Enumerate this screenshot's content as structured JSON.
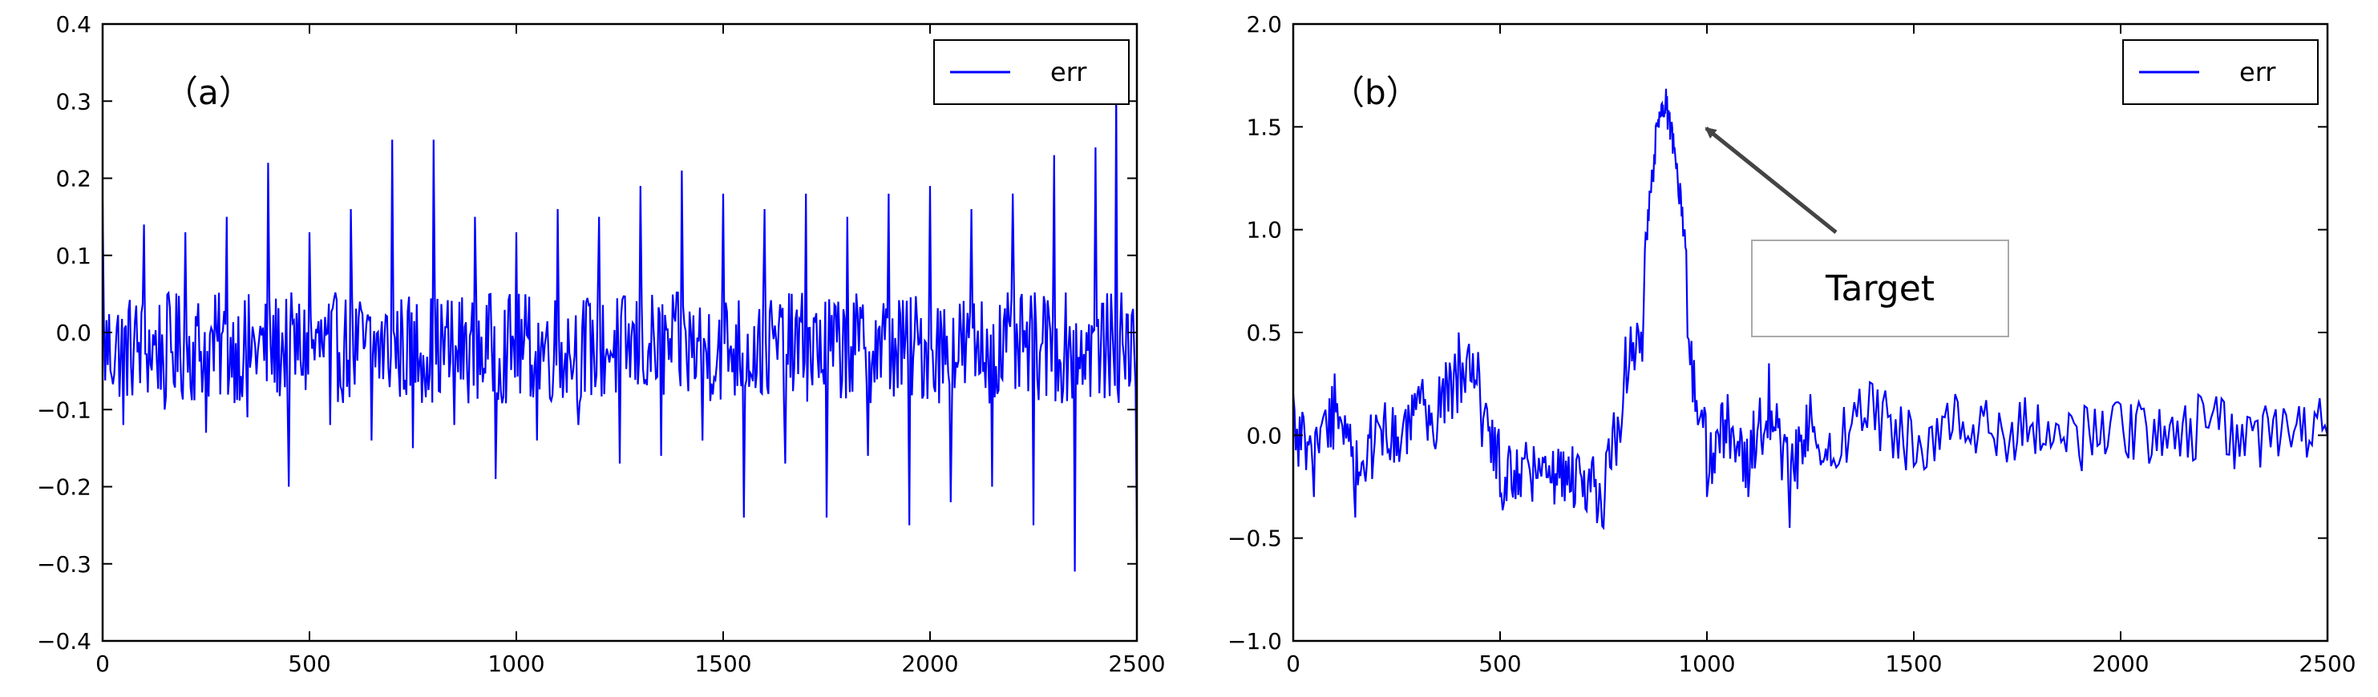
{
  "chart_data": [
    {
      "panel_label": "（a）",
      "type": "line",
      "xlim": [
        0,
        2500
      ],
      "ylim": [
        -0.4,
        0.4
      ],
      "xticks": [
        0,
        500,
        1000,
        1500,
        2000,
        2500
      ],
      "xtick_labels": [
        "0",
        "500",
        "1000",
        "1500",
        "2000",
        "2500"
      ],
      "yticks": [
        -0.4,
        -0.3,
        -0.2,
        -0.1,
        0.0,
        0.1,
        0.2,
        0.3,
        0.4
      ],
      "ytick_labels": [
        "−0.4",
        "−0.3",
        "−0.2",
        "−0.1",
        "0.0",
        "0.1",
        "0.2",
        "0.3",
        "0.4"
      ],
      "legend": {
        "placement": "top-right",
        "entries": [
          "err"
        ]
      },
      "series": [
        {
          "name": "err",
          "color": "#0000ff",
          "description_sampled_points": true,
          "x": [
            0,
            50,
            100,
            150,
            200,
            250,
            300,
            350,
            400,
            450,
            500,
            550,
            600,
            650,
            700,
            750,
            800,
            850,
            900,
            950,
            1000,
            1050,
            1100,
            1150,
            1200,
            1250,
            1300,
            1350,
            1400,
            1450,
            1500,
            1550,
            1600,
            1650,
            1700,
            1750,
            1800,
            1850,
            1900,
            1950,
            2000,
            2050,
            2100,
            2150,
            2200,
            2250,
            2300,
            2350,
            2400,
            2450,
            2500
          ],
          "y": [
            0.17,
            -0.12,
            0.14,
            -0.1,
            0.13,
            -0.13,
            0.15,
            -0.11,
            0.22,
            -0.2,
            0.13,
            -0.12,
            0.16,
            -0.14,
            0.25,
            -0.15,
            0.25,
            -0.12,
            0.15,
            -0.19,
            0.13,
            -0.14,
            0.16,
            -0.12,
            0.15,
            -0.17,
            0.19,
            -0.16,
            0.21,
            -0.14,
            0.18,
            -0.24,
            0.16,
            -0.17,
            0.18,
            -0.24,
            0.15,
            -0.16,
            0.18,
            -0.25,
            0.19,
            -0.22,
            0.16,
            -0.2,
            0.18,
            -0.25,
            0.23,
            -0.31,
            0.24,
            0.32,
            -0.27
          ]
        }
      ]
    },
    {
      "panel_label": "（b）",
      "type": "line",
      "xlim": [
        0,
        2500
      ],
      "ylim": [
        -1.0,
        2.0
      ],
      "xticks": [
        0,
        500,
        1000,
        1500,
        2000,
        2500
      ],
      "xtick_labels": [
        "0",
        "500",
        "1000",
        "1500",
        "2000",
        "2500"
      ],
      "yticks": [
        -1.0,
        -0.5,
        0.0,
        0.5,
        1.0,
        1.5,
        2.0
      ],
      "ytick_labels": [
        "−1.0",
        "−0.5",
        "0.0",
        "0.5",
        "1.0",
        "1.5",
        "2.0"
      ],
      "legend": {
        "placement": "top-right",
        "entries": [
          "err"
        ]
      },
      "annotation": {
        "text": "Target",
        "points_to": [
          920,
          1.55
        ]
      },
      "series": [
        {
          "name": "err",
          "color": "#0000ff",
          "description_sampled_points": true,
          "x": [
            0,
            50,
            100,
            150,
            200,
            250,
            300,
            350,
            400,
            450,
            500,
            550,
            600,
            650,
            700,
            750,
            800,
            850,
            880,
            900,
            920,
            950,
            1000,
            1050,
            1100,
            1150,
            1200,
            1250,
            1300,
            1400,
            1500,
            1600,
            1700,
            1800,
            1900,
            2000,
            2100,
            2200,
            2300,
            2400,
            2500
          ],
          "y": [
            0.2,
            -0.3,
            0.3,
            -0.4,
            0.1,
            -0.1,
            0.2,
            0.1,
            0.5,
            0.3,
            -0.3,
            -0.3,
            -0.2,
            -0.3,
            -0.3,
            -0.45,
            0.3,
            0.9,
            1.5,
            1.62,
            1.4,
            0.9,
            -0.3,
            0.2,
            -0.3,
            0.35,
            -0.45,
            0.2,
            -0.15,
            0.25,
            -0.15,
            0.2,
            -0.1,
            0.15,
            -0.1,
            0.15,
            -0.1,
            0.15,
            -0.1,
            0.1,
            0.0
          ]
        }
      ]
    }
  ]
}
